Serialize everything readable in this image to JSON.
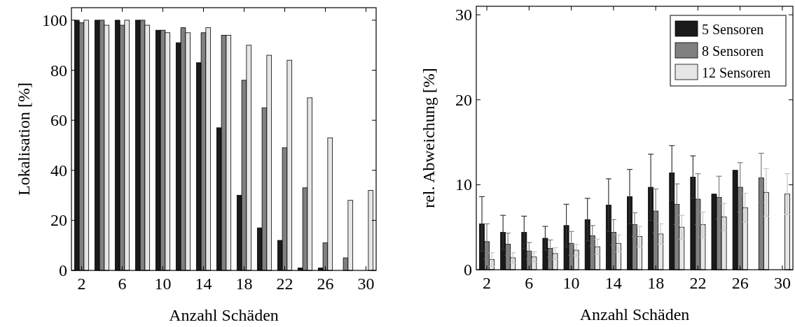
{
  "chart_data": [
    {
      "type": "bar",
      "xlabel": "Anzahl Schäden",
      "ylabel": "Lokalisation [%]",
      "x": [
        2,
        4,
        6,
        8,
        10,
        12,
        14,
        16,
        18,
        20,
        22,
        24,
        26,
        28,
        30
      ],
      "xlim": [
        1,
        31
      ],
      "xticks": [
        2,
        6,
        10,
        14,
        18,
        22,
        26,
        30
      ],
      "ylim": [
        0,
        105
      ],
      "yticks": [
        0,
        20,
        40,
        60,
        80,
        100
      ],
      "series": [
        {
          "color": "#1a1a1a",
          "values": [
            100,
            100,
            100,
            100,
            96,
            91,
            83,
            57,
            30,
            17,
            12,
            1,
            1,
            0,
            0
          ]
        },
        {
          "color": "#808080",
          "values": [
            99,
            100,
            98,
            100,
            96,
            97,
            95,
            94,
            76,
            65,
            49,
            33,
            11,
            5,
            0
          ]
        },
        {
          "color": "#e6e6e6",
          "values": [
            100,
            98,
            100,
            98,
            95,
            95,
            97,
            94,
            90,
            86,
            84,
            69,
            53,
            28,
            32
          ]
        }
      ]
    },
    {
      "type": "bar",
      "xlabel": "Anzahl Schäden",
      "ylabel": "rel. Abweichung [%]",
      "x": [
        2,
        4,
        6,
        8,
        10,
        12,
        14,
        16,
        18,
        20,
        22,
        24,
        26,
        28,
        30
      ],
      "xlim": [
        1,
        31
      ],
      "xticks": [
        2,
        6,
        10,
        14,
        18,
        22,
        26,
        30
      ],
      "ylim": [
        0,
        31
      ],
      "yticks": [
        0,
        10,
        20,
        30
      ],
      "legend": "top right",
      "series": [
        {
          "name": "5 Sensoren",
          "color": "#1a1a1a",
          "values": [
            5.4,
            4.4,
            4.4,
            3.7,
            5.2,
            5.9,
            7.6,
            8.6,
            9.7,
            11.4,
            10.9,
            8.9,
            11.7,
            0,
            0
          ],
          "errors": [
            3.2,
            2.0,
            1.9,
            1.4,
            2.5,
            2.5,
            3.1,
            3.2,
            3.9,
            3.2,
            2.5,
            null,
            null,
            null,
            null
          ]
        },
        {
          "name": "8 Sensoren",
          "color": "#808080",
          "values": [
            3.3,
            3.0,
            2.2,
            2.5,
            3.1,
            4.0,
            4.4,
            5.3,
            6.9,
            7.7,
            8.3,
            8.5,
            9.7,
            10.8,
            0
          ],
          "errors": [
            2.1,
            1.3,
            1.0,
            1.0,
            1.4,
            1.2,
            1.5,
            1.4,
            2.6,
            2.4,
            3.0,
            2.5,
            2.9,
            2.9,
            null
          ]
        },
        {
          "name": "12 Sensoren",
          "color": "#e6e6e6",
          "values": [
            1.2,
            1.4,
            1.5,
            1.9,
            2.3,
            2.7,
            3.1,
            3.9,
            4.2,
            5.0,
            5.3,
            6.2,
            7.3,
            9.1,
            8.9
          ],
          "errors": [
            0.8,
            0.6,
            0.6,
            0.7,
            0.7,
            0.9,
            1.0,
            1.2,
            1.2,
            1.4,
            1.5,
            1.6,
            1.7,
            2.8,
            2.4
          ]
        }
      ]
    }
  ]
}
